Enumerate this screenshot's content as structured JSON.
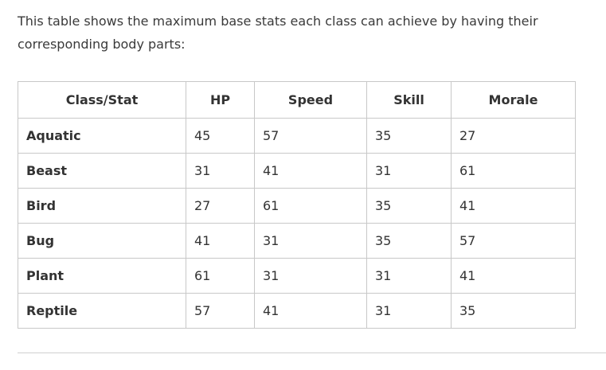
{
  "intro_text": "This table shows the maximum base stats each class can achieve by having their corresponding body parts:",
  "table": {
    "headers": [
      "Class/Stat",
      "HP",
      "Speed",
      "Skill",
      "Morale"
    ],
    "rows": [
      {
        "class": "Aquatic",
        "hp": "45",
        "speed": "57",
        "skill": "35",
        "morale": "27"
      },
      {
        "class": "Beast",
        "hp": "31",
        "speed": "41",
        "skill": "31",
        "morale": "61"
      },
      {
        "class": "Bird",
        "hp": "27",
        "speed": "61",
        "skill": "35",
        "morale": "41"
      },
      {
        "class": "Bug",
        "hp": "41",
        "speed": "31",
        "skill": "35",
        "morale": "57"
      },
      {
        "class": "Plant",
        "hp": "61",
        "speed": "31",
        "skill": "31",
        "morale": "41"
      },
      {
        "class": "Reptile",
        "hp": "57",
        "speed": "41",
        "skill": "31",
        "morale": "35"
      }
    ]
  }
}
